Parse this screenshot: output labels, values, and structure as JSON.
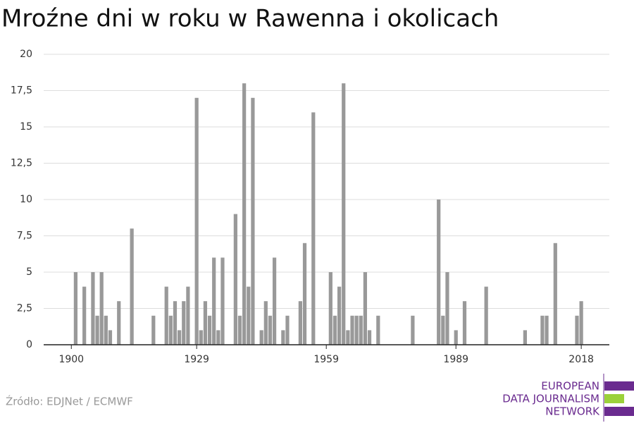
{
  "chart_data": {
    "type": "bar",
    "title": "Mroźne dni w roku w Rawenna i okolicach",
    "x": [
      1901,
      1903,
      1905,
      1906,
      1907,
      1908,
      1909,
      1911,
      1914,
      1919,
      1922,
      1923,
      1924,
      1925,
      1926,
      1927,
      1929,
      1930,
      1931,
      1932,
      1933,
      1934,
      1935,
      1938,
      1939,
      1940,
      1941,
      1942,
      1944,
      1945,
      1946,
      1947,
      1949,
      1950,
      1953,
      1954,
      1956,
      1960,
      1961,
      1962,
      1963,
      1964,
      1965,
      1966,
      1967,
      1968,
      1969,
      1971,
      1979,
      1985,
      1986,
      1987,
      1989,
      1991,
      1996,
      2005,
      2009,
      2010,
      2012,
      2017,
      2018
    ],
    "values": [
      5,
      4,
      5,
      2,
      5,
      2,
      1,
      3,
      8,
      2,
      4,
      2,
      3,
      1,
      3,
      4,
      17,
      1,
      3,
      2,
      6,
      1,
      6,
      9,
      2,
      18,
      4,
      17,
      1,
      3,
      2,
      6,
      1,
      2,
      3,
      7,
      16,
      5,
      2,
      4,
      18,
      1,
      2,
      2,
      2,
      5,
      1,
      2,
      2,
      10,
      2,
      5,
      1,
      3,
      4,
      1,
      2,
      2,
      7,
      2,
      3
    ],
    "color": "#999999",
    "xlim": [
      1893.6,
      2024.5
    ],
    "xticks": [
      1900,
      1929,
      1959,
      1989,
      2018
    ],
    "ylim": [
      0,
      20
    ],
    "yticks": [
      0,
      {
        "value": 2.5,
        "label": "2,5"
      },
      5,
      {
        "value": 7.5,
        "label": "7,5"
      },
      10,
      {
        "value": 12.5,
        "label": "12,5"
      },
      15,
      {
        "value": 17.5,
        "label": "17,5"
      },
      20
    ],
    "grid": true
  },
  "footer": {
    "source": "Źródło: EDJNet / ECMWF",
    "logo": [
      "EUROPEAN",
      "DATA JOURNALISM",
      "NETWORK"
    ]
  }
}
